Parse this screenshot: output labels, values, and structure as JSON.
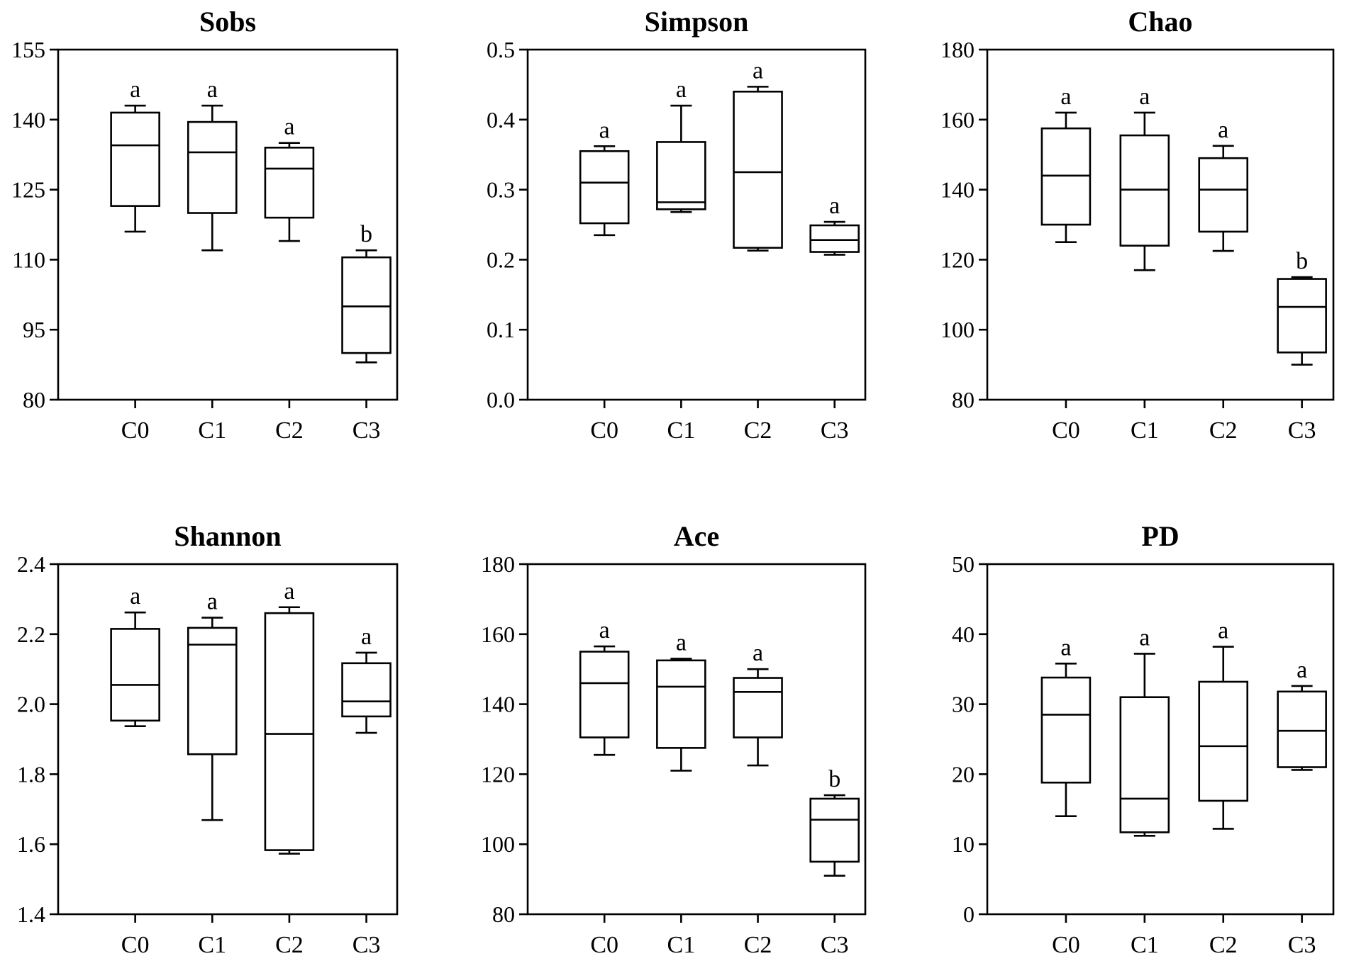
{
  "chart_data": [
    {
      "type": "box",
      "title": "Sobs",
      "categories": [
        "C0",
        "C1",
        "C2",
        "C3"
      ],
      "ylim": [
        80,
        155
      ],
      "yticks": [
        80,
        95,
        110,
        125,
        140,
        155
      ],
      "ytick_labels": [
        "80",
        "95",
        "110",
        "125",
        "140",
        "155"
      ],
      "boxes": [
        {
          "min": 116,
          "q1": 121.5,
          "median": 134.5,
          "q3": 141.5,
          "max": 143,
          "label": "a"
        },
        {
          "min": 112,
          "q1": 120,
          "median": 133,
          "q3": 139.5,
          "max": 143,
          "label": "a"
        },
        {
          "min": 114,
          "q1": 119,
          "median": 129.5,
          "q3": 134,
          "max": 135,
          "label": "a"
        },
        {
          "min": 88,
          "q1": 90,
          "median": 100,
          "q3": 110.5,
          "max": 112,
          "label": "b"
        }
      ]
    },
    {
      "type": "box",
      "title": "Simpson",
      "categories": [
        "C0",
        "C1",
        "C2",
        "C3"
      ],
      "ylim": [
        0.0,
        0.5
      ],
      "yticks": [
        0.0,
        0.1,
        0.2,
        0.3,
        0.4,
        0.5
      ],
      "ytick_labels": [
        "0.0",
        "0.1",
        "0.2",
        "0.3",
        "0.4",
        "0.5"
      ],
      "boxes": [
        {
          "min": 0.235,
          "q1": 0.252,
          "median": 0.31,
          "q3": 0.355,
          "max": 0.362,
          "label": "a"
        },
        {
          "min": 0.268,
          "q1": 0.272,
          "median": 0.282,
          "q3": 0.368,
          "max": 0.42,
          "label": "a"
        },
        {
          "min": 0.213,
          "q1": 0.217,
          "median": 0.325,
          "q3": 0.44,
          "max": 0.447,
          "label": "a"
        },
        {
          "min": 0.207,
          "q1": 0.211,
          "median": 0.228,
          "q3": 0.249,
          "max": 0.254,
          "label": "a"
        }
      ]
    },
    {
      "type": "box",
      "title": "Chao",
      "categories": [
        "C0",
        "C1",
        "C2",
        "C3"
      ],
      "ylim": [
        80,
        180
      ],
      "yticks": [
        80,
        100,
        120,
        140,
        160,
        180
      ],
      "ytick_labels": [
        "80",
        "100",
        "120",
        "140",
        "160",
        "180"
      ],
      "boxes": [
        {
          "min": 125,
          "q1": 130,
          "median": 144,
          "q3": 157.5,
          "max": 162,
          "label": "a"
        },
        {
          "min": 117,
          "q1": 124,
          "median": 140,
          "q3": 155.5,
          "max": 162,
          "label": "a"
        },
        {
          "min": 122.5,
          "q1": 128,
          "median": 140,
          "q3": 149,
          "max": 152.5,
          "label": "a"
        },
        {
          "min": 90,
          "q1": 93.5,
          "median": 106.5,
          "q3": 114.5,
          "max": 115,
          "label": "b"
        }
      ]
    },
    {
      "type": "box",
      "title": "Shannon",
      "categories": [
        "C0",
        "C1",
        "C2",
        "C3"
      ],
      "ylim": [
        1.4,
        2.4
      ],
      "yticks": [
        1.4,
        1.6,
        1.8,
        2.0,
        2.2,
        2.4
      ],
      "ytick_labels": [
        "1.4",
        "1.6",
        "1.8",
        "2.0",
        "2.2",
        "2.4"
      ],
      "boxes": [
        {
          "min": 1.937,
          "q1": 1.953,
          "median": 2.055,
          "q3": 2.215,
          "max": 2.262,
          "label": "a"
        },
        {
          "min": 1.669,
          "q1": 1.857,
          "median": 2.17,
          "q3": 2.218,
          "max": 2.247,
          "label": "a"
        },
        {
          "min": 1.573,
          "q1": 1.583,
          "median": 1.915,
          "q3": 2.26,
          "max": 2.277,
          "label": "a"
        },
        {
          "min": 1.918,
          "q1": 1.965,
          "median": 2.008,
          "q3": 2.117,
          "max": 2.147,
          "label": "a"
        }
      ]
    },
    {
      "type": "box",
      "title": "Ace",
      "categories": [
        "C0",
        "C1",
        "C2",
        "C3"
      ],
      "ylim": [
        80,
        180
      ],
      "yticks": [
        80,
        100,
        120,
        140,
        160,
        180
      ],
      "ytick_labels": [
        "80",
        "100",
        "120",
        "140",
        "160",
        "180"
      ],
      "boxes": [
        {
          "min": 125.5,
          "q1": 130.5,
          "median": 146,
          "q3": 155,
          "max": 156.5,
          "label": "a"
        },
        {
          "min": 121,
          "q1": 127.5,
          "median": 145,
          "q3": 152.5,
          "max": 153,
          "label": "a"
        },
        {
          "min": 122.5,
          "q1": 130.5,
          "median": 143.5,
          "q3": 147.5,
          "max": 150,
          "label": "a"
        },
        {
          "min": 91,
          "q1": 95,
          "median": 107,
          "q3": 113,
          "max": 114,
          "label": "b"
        }
      ]
    },
    {
      "type": "box",
      "title": "PD",
      "categories": [
        "C0",
        "C1",
        "C2",
        "C3"
      ],
      "ylim": [
        0,
        50
      ],
      "yticks": [
        0,
        10,
        20,
        30,
        40,
        50
      ],
      "ytick_labels": [
        "0",
        "10",
        "20",
        "30",
        "40",
        "50"
      ],
      "boxes": [
        {
          "min": 14,
          "q1": 18.8,
          "median": 28.5,
          "q3": 33.8,
          "max": 35.8,
          "label": "a"
        },
        {
          "min": 11.2,
          "q1": 11.7,
          "median": 16.5,
          "q3": 31,
          "max": 37.2,
          "label": "a"
        },
        {
          "min": 12.2,
          "q1": 16.2,
          "median": 24,
          "q3": 33.2,
          "max": 38.2,
          "label": "a"
        },
        {
          "min": 20.6,
          "q1": 21,
          "median": 26.2,
          "q3": 31.8,
          "max": 32.6,
          "label": "a"
        }
      ]
    }
  ]
}
